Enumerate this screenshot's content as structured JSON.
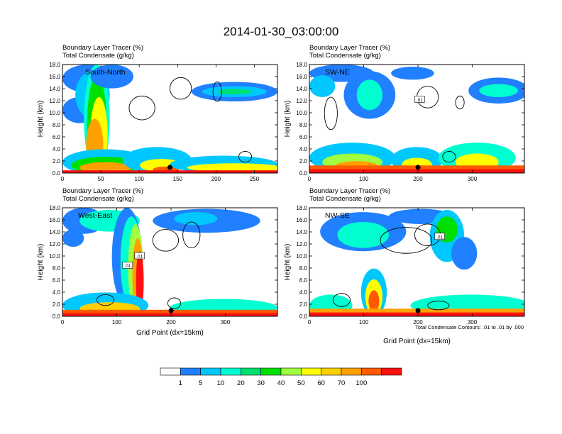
{
  "figure": {
    "title": "2014-01-30_03:00:00",
    "panel_title_line1": "Boundary Layer Tracer   (%)",
    "panel_title_line2": "Total Condensate   (g/kg)",
    "ylabel": "Height (km)",
    "xlabel": "Grid Point (dx=15km)",
    "contour_note": "Total Condensate Contours: .01 to .01 by .000"
  },
  "colorbar": {
    "labels": [
      "1",
      "5",
      "10",
      "20",
      "30",
      "40",
      "50",
      "60",
      "70",
      "100"
    ],
    "colors": [
      "#ffffff",
      "#2080ff",
      "#00c8ff",
      "#00ffd0",
      "#00e070",
      "#00e000",
      "#a0ff40",
      "#ffff00",
      "#ffd000",
      "#ffa000",
      "#ff5a00",
      "#ff1010"
    ]
  },
  "chart_data": [
    {
      "type": "heatmap",
      "panel": "top-left",
      "label": "South-North",
      "xlim": [
        0,
        280
      ],
      "xticks": [
        0,
        50,
        100,
        150,
        200,
        250
      ],
      "ylim": [
        0,
        18
      ],
      "yticks": [
        "0.0",
        "2.0",
        "4.0",
        "6.0",
        "8.0",
        "10.0",
        "12.0",
        "14.0",
        "16.0",
        "18.0"
      ],
      "show_xlabel": false,
      "marker_x": 140,
      "contour_labels": []
    },
    {
      "type": "heatmap",
      "panel": "top-right",
      "label": "SW-NE",
      "xlim": [
        0,
        396
      ],
      "xticks": [
        0,
        100,
        200,
        300
      ],
      "ylim": [
        0,
        18
      ],
      "yticks": [
        "0.0",
        "2.0",
        "4.0",
        "6.0",
        "8.0",
        "10.0",
        "12.0",
        "14.0",
        "16.0",
        "18.0"
      ],
      "show_xlabel": false,
      "marker_x": 200,
      "contour_labels": [
        {
          "text": ".01",
          "x": 203,
          "y": 12.2
        }
      ]
    },
    {
      "type": "heatmap",
      "panel": "bottom-left",
      "label": "West-East",
      "xlim": [
        0,
        396
      ],
      "xticks": [
        0,
        100,
        200,
        300
      ],
      "ylim": [
        0,
        18
      ],
      "yticks": [
        "0.0",
        "2.0",
        "4.0",
        "6.0",
        "8.0",
        "10.0",
        "12.0",
        "14.0",
        "16.0",
        "18.0"
      ],
      "show_xlabel": true,
      "marker_x": 200,
      "contour_labels": [
        {
          "text": ".01",
          "x": 142,
          "y": 10.0
        },
        {
          "text": ".01",
          "x": 120,
          "y": 8.4
        }
      ]
    },
    {
      "type": "heatmap",
      "panel": "bottom-right",
      "label": "NW-SE",
      "xlim": [
        0,
        396
      ],
      "xticks": [
        0,
        100,
        200,
        300
      ],
      "ylim": [
        0,
        18
      ],
      "yticks": [
        "0.0",
        "2.0",
        "4.0",
        "6.0",
        "8.0",
        "10.0",
        "12.0",
        "14.0",
        "16.0",
        "18.0"
      ],
      "show_xlabel": true,
      "marker_x": 200,
      "contour_labels": [
        {
          "text": ".01",
          "x": 240,
          "y": 13.2
        }
      ]
    }
  ]
}
